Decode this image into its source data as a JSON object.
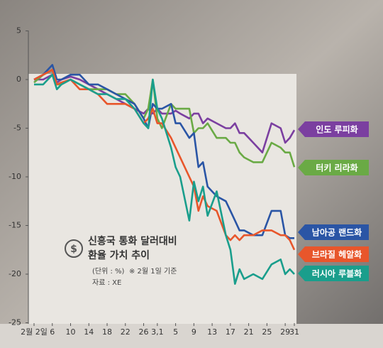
{
  "chart_data": {
    "type": "line",
    "title": [
      "신흥국 통화 달러대비",
      "환율 가치 추이"
    ],
    "unit": "(단위 : %)",
    "note": "※ 2월 1일 기준",
    "source": "자료 : XE",
    "x": [
      0,
      2,
      4,
      5,
      6,
      8,
      10,
      12,
      14,
      16,
      18,
      20,
      22,
      24,
      25,
      26,
      27,
      28,
      30,
      31,
      32,
      34,
      35,
      36,
      37,
      38,
      40,
      42,
      43,
      44,
      45,
      46,
      48,
      50,
      52,
      54,
      55,
      56,
      57
    ],
    "xlim": [
      0,
      57
    ],
    "xticks": [
      {
        "value": 0,
        "label": "2월 2일"
      },
      {
        "value": 4,
        "label": "6"
      },
      {
        "value": 8,
        "label": "10"
      },
      {
        "value": 12,
        "label": "14"
      },
      {
        "value": 16,
        "label": "18"
      },
      {
        "value": 20,
        "label": "22"
      },
      {
        "value": 24,
        "label": "26"
      },
      {
        "value": 27,
        "label": "3,1"
      },
      {
        "value": 31,
        "label": "5"
      },
      {
        "value": 35,
        "label": "9"
      },
      {
        "value": 39,
        "label": "13"
      },
      {
        "value": 43,
        "label": "17"
      },
      {
        "value": 47,
        "label": "21"
      },
      {
        "value": 51,
        "label": "25"
      },
      {
        "value": 55,
        "label": "29"
      },
      {
        "value": 57,
        "label": "31"
      }
    ],
    "ylim": [
      -25,
      5
    ],
    "yticks": [
      5,
      0,
      -5,
      -10,
      -15,
      -20,
      -25
    ],
    "series": [
      {
        "name": "인도 루피화",
        "color": "#7b3fa0",
        "values": [
          0,
          0,
          0.5,
          -0.3,
          0,
          0.3,
          0,
          -0.5,
          -1,
          -1.5,
          -2,
          -2.5,
          -3,
          -3.5,
          -3,
          -3.5,
          -3,
          -3.5,
          -3.5,
          -3.2,
          -3.5,
          -4,
          -3.5,
          -3.5,
          -4.5,
          -4,
          -4.5,
          -5,
          -5,
          -4.5,
          -5.5,
          -5.5,
          -6.5,
          -7.5,
          -4.5,
          -5,
          -6.5,
          -6,
          -5.2
        ]
      },
      {
        "name": "터키 리라화",
        "color": "#6aaa45",
        "values": [
          -0.3,
          0.5,
          1,
          -0.5,
          -0.5,
          0,
          -0.5,
          -1,
          -1,
          -1,
          -1.5,
          -1.5,
          -2.5,
          -4,
          -3,
          0,
          -4,
          -5,
          -2.5,
          -3,
          -3,
          -3,
          -5.5,
          -5,
          -5,
          -4.5,
          -6,
          -6,
          -6.5,
          -6.5,
          -7.5,
          -8,
          -8.5,
          -8.5,
          -6.5,
          -7,
          -7.5,
          -7.5,
          -9
        ]
      },
      {
        "name": "남아공 랜드화",
        "color": "#2a55a5",
        "values": [
          0,
          0.5,
          1.5,
          0,
          0,
          0.5,
          0.5,
          -0.5,
          -0.5,
          -1,
          -1.5,
          -2,
          -2.5,
          -4,
          -5,
          -2.5,
          -3,
          -3,
          -2.5,
          -4.5,
          -4.5,
          -6,
          -5.5,
          -9,
          -8.5,
          -11,
          -12,
          -12.5,
          -13.5,
          -14.5,
          -15.5,
          -15.5,
          -16,
          -16,
          -13.5,
          -13.5,
          -16,
          -16.3,
          -16.3
        ]
      },
      {
        "name": "브라질 헤알화",
        "color": "#e8562b",
        "values": [
          0,
          0.5,
          1,
          -0.5,
          -0.3,
          0,
          -1,
          -1,
          -1.5,
          -2.5,
          -2.5,
          -2.5,
          -3,
          -4.5,
          -4,
          -3,
          -4.5,
          -4.5,
          -6,
          -7,
          -8,
          -10,
          -11,
          -13.5,
          -12,
          -13,
          -13.5,
          -16,
          -16.5,
          -16,
          -16.5,
          -16,
          -16,
          -15.5,
          -15.5,
          -16,
          -16,
          -16.5,
          -17.5
        ]
      },
      {
        "name": "러시아 루블화",
        "color": "#1a9e8c",
        "values": [
          -0.5,
          -0.5,
          0.5,
          -1,
          -0.5,
          0,
          -0.5,
          -1,
          -1.5,
          -1.5,
          -2,
          -2,
          -3,
          -4.5,
          -5,
          0,
          -3,
          -4,
          -7,
          -9,
          -10,
          -14.5,
          -10.5,
          -12.5,
          -11,
          -14,
          -11.5,
          -16,
          -17.5,
          -21,
          -19.5,
          -20.5,
          -20,
          -20.5,
          -19,
          -18.5,
          -20,
          -19.5,
          -20
        ]
      }
    ]
  }
}
